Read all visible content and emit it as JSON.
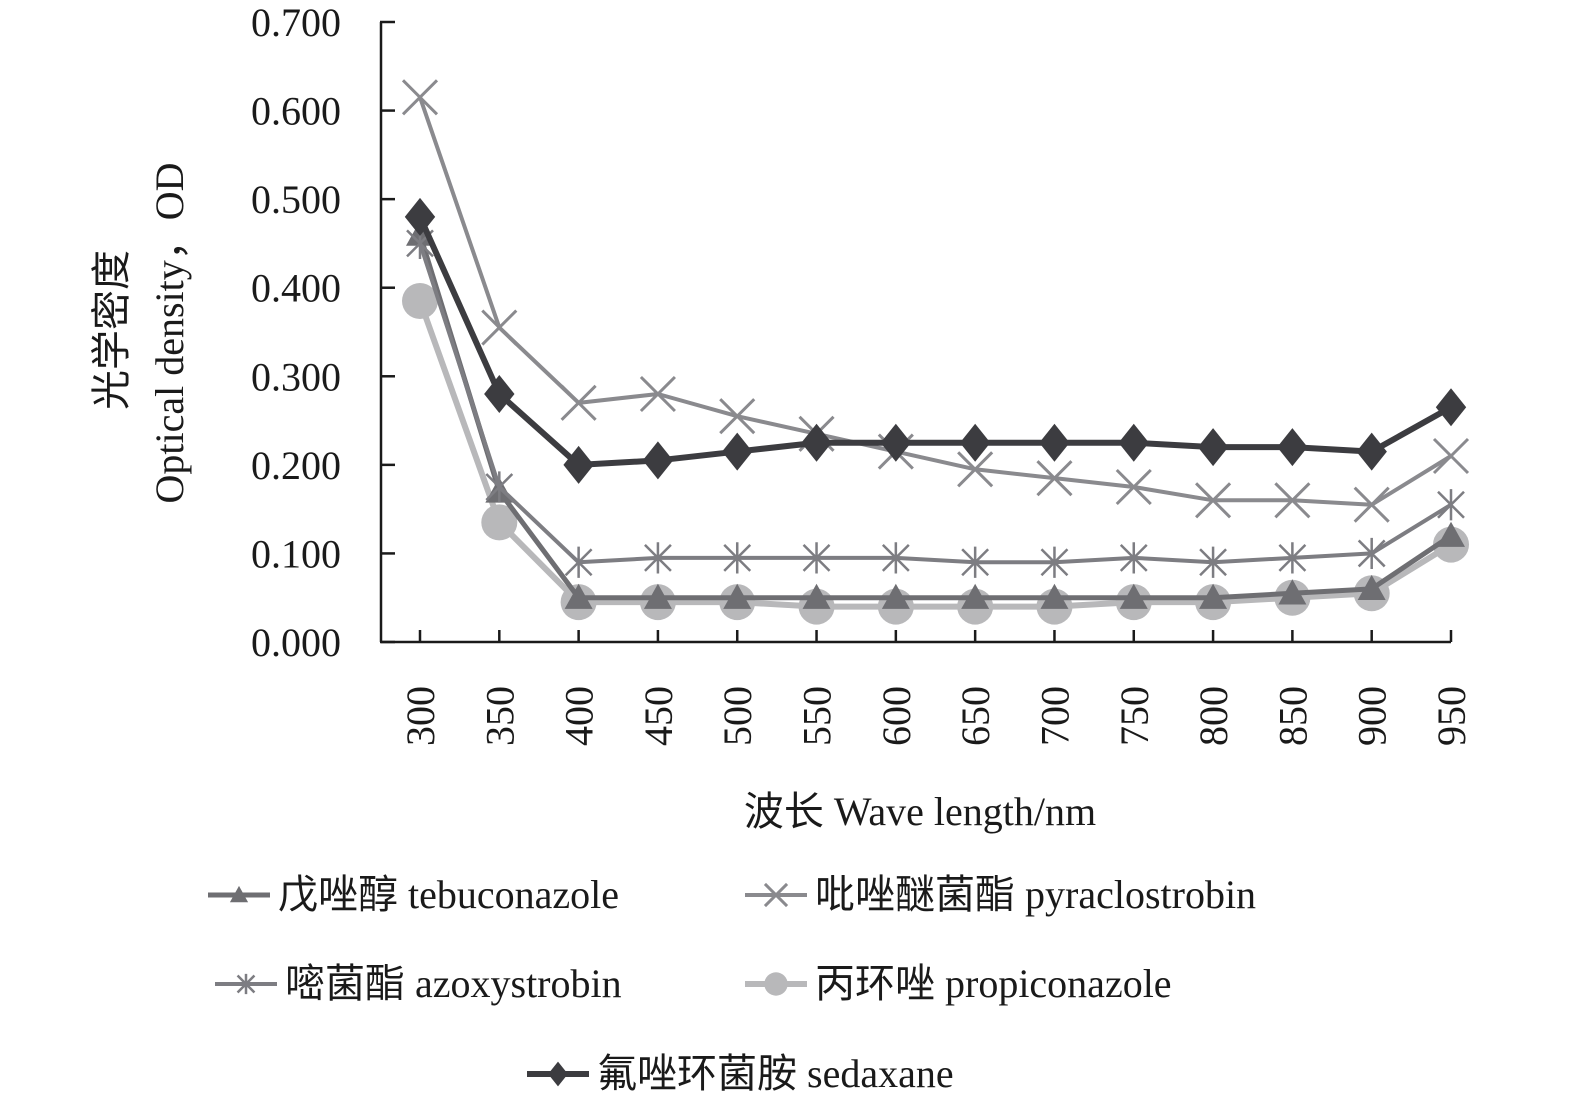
{
  "chart_data": {
    "type": "line",
    "xlabel": "波长 Wave length/nm",
    "ylabel": "Optical density，OD",
    "ylabel_cn": "光学密度",
    "x": [
      300,
      350,
      400,
      450,
      500,
      550,
      600,
      650,
      700,
      750,
      800,
      850,
      900,
      950
    ],
    "x_tick_labels": [
      "300",
      "350",
      "400",
      "450",
      "500",
      "550",
      "600",
      "650",
      "700",
      "750",
      "800",
      "850",
      "900",
      "950"
    ],
    "y_tick_labels": [
      "0.000",
      "0.100",
      "0.200",
      "0.300",
      "0.400",
      "0.500",
      "0.600",
      "0.700"
    ],
    "ylim": [
      0,
      0.7
    ],
    "grid": false,
    "legend_position": "bottom",
    "series": [
      {
        "name": "戊唑醇  tebuconazole",
        "marker": "triangle",
        "color": "#6e6e72",
        "values": [
          0.46,
          0.17,
          0.05,
          0.05,
          0.05,
          0.05,
          0.05,
          0.05,
          0.05,
          0.05,
          0.05,
          0.055,
          0.06,
          0.12
        ]
      },
      {
        "name": "吡唑醚菌酯  pyraclostrobin",
        "marker": "x",
        "color": "#8a8a8e",
        "values": [
          0.615,
          0.355,
          0.27,
          0.28,
          0.255,
          0.235,
          0.215,
          0.195,
          0.185,
          0.175,
          0.16,
          0.16,
          0.155,
          0.21
        ]
      },
      {
        "name": "嘧菌酯  azoxystrobin",
        "marker": "asterisk",
        "color": "#7d7d82",
        "values": [
          0.45,
          0.175,
          0.09,
          0.095,
          0.095,
          0.095,
          0.095,
          0.09,
          0.09,
          0.095,
          0.09,
          0.095,
          0.1,
          0.155
        ]
      },
      {
        "name": "丙环唑  propiconazole",
        "marker": "circle",
        "color": "#b8b8ba",
        "values": [
          0.385,
          0.135,
          0.045,
          0.045,
          0.045,
          0.04,
          0.04,
          0.04,
          0.04,
          0.045,
          0.045,
          0.05,
          0.055,
          0.11
        ]
      },
      {
        "name": "氟唑环菌胺  sedaxane",
        "marker": "diamond",
        "color": "#3c3c40",
        "values": [
          0.48,
          0.28,
          0.2,
          0.205,
          0.215,
          0.225,
          0.225,
          0.225,
          0.225,
          0.225,
          0.22,
          0.22,
          0.215,
          0.265
        ]
      }
    ]
  }
}
